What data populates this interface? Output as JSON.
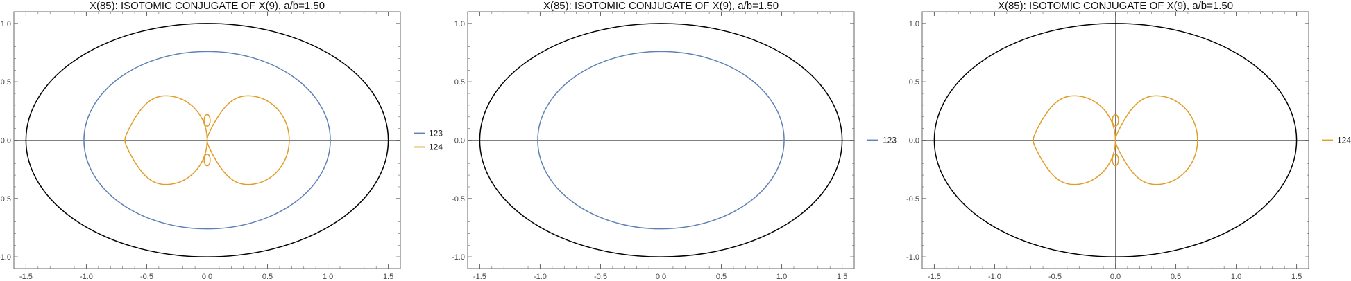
{
  "colors": {
    "ellipse": "#000000",
    "series_123": "#5e81b5",
    "series_124": "#e19c24",
    "frame": "#666666",
    "axes": "#555555"
  },
  "chart_data": [
    {
      "type": "line",
      "title": "X(85): ISOTOMIC CONJUGATE OF X(9), a/b=1.50",
      "xlim": [
        -1.6,
        1.6
      ],
      "ylim": [
        -1.1,
        1.1
      ],
      "xticks": [
        -1.5,
        -1.0,
        -0.5,
        0.0,
        0.5,
        1.0,
        1.5
      ],
      "xtick_labels": [
        "-1.5",
        "-1.0",
        "-0.5",
        "0.0",
        "0.5",
        "1.0",
        "1.5"
      ],
      "yticks": [
        -1.0,
        -0.5,
        0.0,
        0.5,
        1.0
      ],
      "ytick_labels": [
        "-1.0",
        "-0.5",
        "0.0",
        "0.5",
        "1.0"
      ],
      "grid": false,
      "legend_placement": "right",
      "ellipse": {
        "a": 1.5,
        "b": 1.0
      },
      "series": [
        {
          "name": "123",
          "shape": "oval",
          "a": 1.02,
          "b": 0.76
        },
        {
          "name": "124",
          "shape": "bilobe",
          "a": 0.68,
          "b": 0.38
        }
      ]
    },
    {
      "type": "line",
      "title": "X(85): ISOTOMIC CONJUGATE OF X(9), a/b=1.50",
      "xlim": [
        -1.6,
        1.6
      ],
      "ylim": [
        -1.1,
        1.1
      ],
      "xticks": [
        -1.5,
        -1.0,
        -0.5,
        0.0,
        0.5,
        1.0,
        1.5
      ],
      "xtick_labels": [
        "-1.5",
        "-1.0",
        "-0.5",
        "0.0",
        "0.5",
        "1.0",
        "1.5"
      ],
      "yticks": [
        -1.0,
        -0.5,
        0.0,
        0.5,
        1.0
      ],
      "ytick_labels": [
        "-1.0",
        "-0.5",
        "0.0",
        "0.5",
        "1.0"
      ],
      "grid": false,
      "legend_placement": "right",
      "ellipse": {
        "a": 1.5,
        "b": 1.0
      },
      "series": [
        {
          "name": "123",
          "shape": "oval",
          "a": 1.02,
          "b": 0.76
        }
      ]
    },
    {
      "type": "line",
      "title": "X(85): ISOTOMIC CONJUGATE OF X(9), a/b=1.50",
      "xlim": [
        -1.6,
        1.6
      ],
      "ylim": [
        -1.1,
        1.1
      ],
      "xticks": [
        -1.5,
        -1.0,
        -0.5,
        0.0,
        0.5,
        1.0,
        1.5
      ],
      "xtick_labels": [
        "-1.5",
        "-1.0",
        "-0.5",
        "0.0",
        "0.5",
        "1.0",
        "1.5"
      ],
      "yticks": [
        -1.0,
        -0.5,
        0.0,
        0.5,
        1.0
      ],
      "ytick_labels": [
        "-1.0",
        "-0.5",
        "0.0",
        "0.5",
        "1.0"
      ],
      "grid": false,
      "legend_placement": "right",
      "ellipse": {
        "a": 1.5,
        "b": 1.0
      },
      "series": [
        {
          "name": "124",
          "shape": "bilobe",
          "a": 0.68,
          "b": 0.38
        }
      ]
    }
  ]
}
